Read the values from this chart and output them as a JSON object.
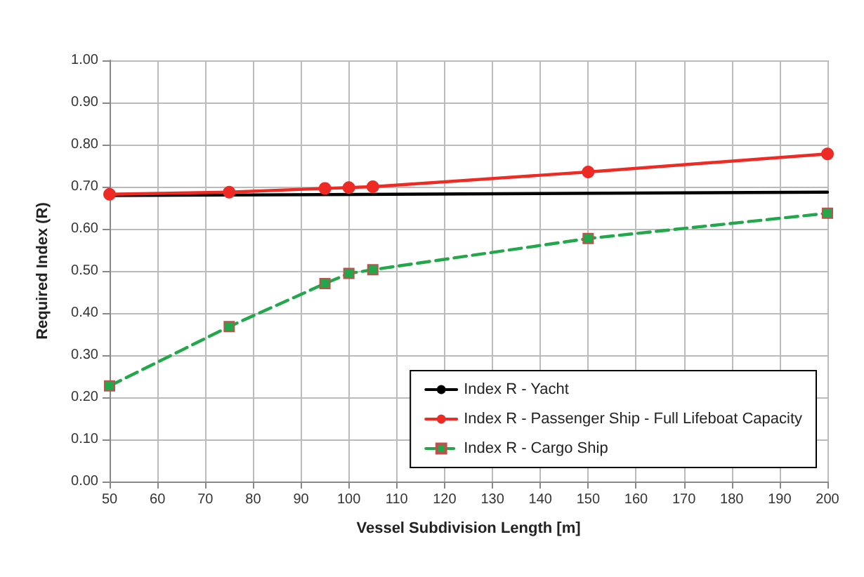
{
  "chart_data": {
    "type": "line",
    "xlabel": "Vessel Subdivision Length [m]",
    "ylabel": "Required Index (R)",
    "xlim": [
      50,
      200
    ],
    "xticks": [
      50,
      60,
      70,
      80,
      90,
      100,
      110,
      120,
      130,
      140,
      150,
      160,
      170,
      180,
      190,
      200
    ],
    "ylim": [
      0,
      1
    ],
    "yticks": [
      {
        "value": 0,
        "label": "0.00"
      },
      {
        "value": 0.1,
        "label": "0.10"
      },
      {
        "value": 0.2,
        "label": "0.20"
      },
      {
        "value": 0.3,
        "label": "0.30"
      },
      {
        "value": 0.4,
        "label": "0.40"
      },
      {
        "value": 0.5,
        "label": "0.50"
      },
      {
        "value": 0.6,
        "label": "0.60"
      },
      {
        "value": 0.7,
        "label": "0.70"
      },
      {
        "value": 0.8,
        "label": "0.80"
      },
      {
        "value": 0.9,
        "label": "0.90"
      },
      {
        "value": 1,
        "label": "1.00"
      }
    ],
    "grid": true,
    "legend": "bottom right",
    "series": [
      {
        "name": "Index R - Yacht",
        "color": "#000000",
        "x": [
          50,
          200
        ],
        "values": [
          0.679,
          0.687
        ],
        "marker": "none",
        "line_style": "solid"
      },
      {
        "name": "Index R - Passenger Ship - Full Lifeboat Capacity",
        "color": "#ee2a24",
        "x": [
          50,
          75,
          95,
          100,
          105,
          150,
          200
        ],
        "values": [
          0.682,
          0.687,
          0.696,
          0.698,
          0.7,
          0.735,
          0.778
        ],
        "marker": "circle",
        "line_style": "solid"
      },
      {
        "name": "Index R - Cargo Ship",
        "color": "#22a84a",
        "x": [
          50,
          75,
          95,
          100,
          105,
          150,
          200
        ],
        "values": [
          0.227,
          0.368,
          0.47,
          0.494,
          0.503,
          0.577,
          0.637
        ],
        "marker": "square",
        "line_style": "dashed"
      }
    ]
  }
}
